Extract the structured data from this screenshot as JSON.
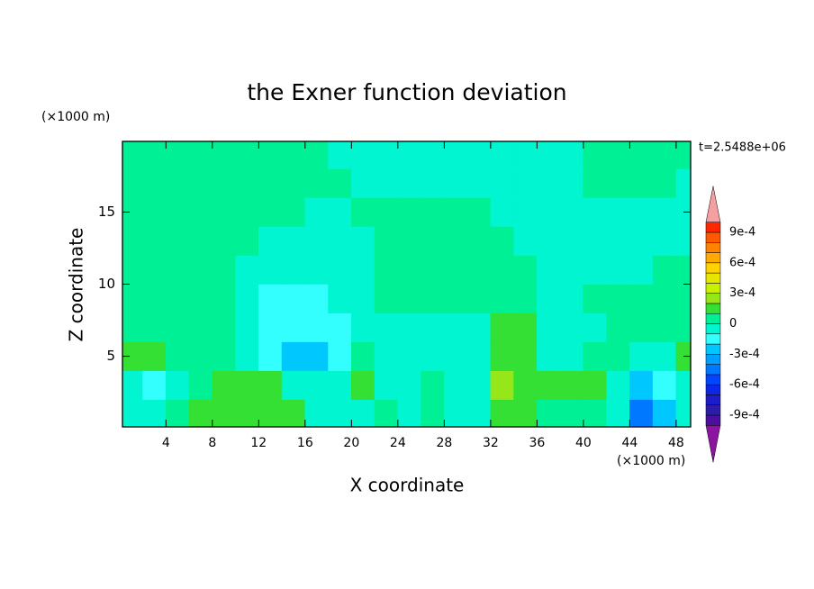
{
  "chart_data": {
    "type": "contour",
    "title": "the Exner function deviation",
    "xlabel": "X coordinate",
    "ylabel": "Z coordinate",
    "xunit": "(×1000 m)",
    "yunit": "(×1000 m)",
    "annotation": "t=2.5488e+06",
    "xlim": [
      0.25,
      49.25
    ],
    "ylim": [
      0.1,
      19.9
    ],
    "xticks": [
      4,
      8,
      12,
      16,
      20,
      24,
      28,
      32,
      36,
      40,
      44,
      48
    ],
    "yticks": [
      5,
      10,
      15
    ],
    "x": [
      1,
      3,
      5,
      7,
      9,
      11,
      13,
      15,
      17,
      19,
      21,
      23,
      25,
      27,
      29,
      31,
      33,
      35,
      37,
      39,
      41,
      43,
      45,
      47,
      49
    ],
    "y": [
      1,
      3,
      5,
      7,
      9,
      11,
      13,
      15,
      17,
      19
    ],
    "z": [
      [
        -5e-05,
        -5e-05,
        5e-05,
        0.00015,
        0.00015,
        0.00015,
        0.00015,
        0.00015,
        -5e-05,
        -5e-05,
        -5e-05,
        5e-05,
        -5e-05,
        5e-05,
        -5e-05,
        -5e-05,
        0.00015,
        0.00015,
        5e-05,
        5e-05,
        5e-05,
        -5e-05,
        -0.00045,
        -0.00025,
        -5e-05
      ],
      [
        -5e-05,
        -0.00015,
        -5e-05,
        5e-05,
        0.00015,
        0.00015,
        0.00015,
        -5e-05,
        -5e-05,
        -5e-05,
        0.00015,
        -5e-05,
        -5e-05,
        5e-05,
        -5e-05,
        -5e-05,
        0.00025,
        0.00015,
        0.00015,
        0.00015,
        0.00015,
        -5e-05,
        -0.00025,
        -0.00015,
        -5e-05
      ],
      [
        0.00015,
        0.00015,
        5e-05,
        5e-05,
        5e-05,
        -5e-05,
        -0.00015,
        -0.00025,
        -0.00025,
        -0.00015,
        5e-05,
        -5e-05,
        -5e-05,
        -5e-05,
        -5e-05,
        -5e-05,
        0.00015,
        0.00015,
        -5e-05,
        -5e-05,
        5e-05,
        5e-05,
        -5e-05,
        -5e-05,
        0.00015
      ],
      [
        5e-05,
        5e-05,
        5e-05,
        5e-05,
        5e-05,
        -5e-05,
        -0.00015,
        -0.00015,
        -0.00015,
        -0.00015,
        -5e-05,
        -5e-05,
        -5e-05,
        -5e-05,
        -5e-05,
        -5e-05,
        0.00015,
        0.00015,
        -5e-05,
        -5e-05,
        -5e-05,
        5e-05,
        5e-05,
        5e-05,
        5e-05
      ],
      [
        5e-05,
        5e-05,
        5e-05,
        5e-05,
        5e-05,
        -5e-05,
        -0.00015,
        -0.00015,
        -0.00015,
        -5e-05,
        -5e-05,
        5e-05,
        5e-05,
        5e-05,
        5e-05,
        5e-05,
        5e-05,
        5e-05,
        -5e-05,
        -5e-05,
        5e-05,
        5e-05,
        5e-05,
        5e-05,
        5e-05
      ],
      [
        5e-05,
        5e-05,
        5e-05,
        5e-05,
        5e-05,
        -5e-05,
        -5e-05,
        -5e-05,
        -5e-05,
        -5e-05,
        -5e-05,
        5e-05,
        5e-05,
        5e-05,
        5e-05,
        5e-05,
        5e-05,
        5e-05,
        -5e-05,
        -5e-05,
        -5e-05,
        -5e-05,
        -5e-05,
        5e-05,
        5e-05
      ],
      [
        5e-05,
        5e-05,
        5e-05,
        5e-05,
        5e-05,
        5e-05,
        -5e-05,
        -5e-05,
        -5e-05,
        -5e-05,
        -5e-05,
        5e-05,
        5e-05,
        5e-05,
        5e-05,
        5e-05,
        5e-05,
        -5e-05,
        -5e-05,
        -5e-05,
        -5e-05,
        -5e-05,
        -5e-05,
        -5e-05,
        -5e-05
      ],
      [
        5e-05,
        5e-05,
        5e-05,
        5e-05,
        5e-05,
        5e-05,
        5e-05,
        5e-05,
        -5e-05,
        -5e-05,
        5e-05,
        5e-05,
        5e-05,
        5e-05,
        5e-05,
        5e-05,
        -5e-05,
        -5e-05,
        -5e-05,
        -5e-05,
        -5e-05,
        -5e-05,
        -5e-05,
        -5e-05,
        -5e-05
      ],
      [
        5e-05,
        5e-05,
        5e-05,
        5e-05,
        5e-05,
        5e-05,
        5e-05,
        5e-05,
        5e-05,
        5e-05,
        -5e-05,
        -5e-05,
        -5e-05,
        -5e-05,
        -5e-05,
        -5e-05,
        -5e-05,
        -5e-05,
        -5e-05,
        -5e-05,
        5e-05,
        5e-05,
        5e-05,
        5e-05,
        -5e-05
      ],
      [
        5e-05,
        5e-05,
        5e-05,
        5e-05,
        5e-05,
        5e-05,
        5e-05,
        5e-05,
        5e-05,
        -5e-05,
        -5e-05,
        -5e-05,
        -5e-05,
        -5e-05,
        -5e-05,
        -5e-05,
        -5e-05,
        -5e-05,
        -5e-05,
        -5e-05,
        5e-05,
        5e-05,
        5e-05,
        5e-05,
        5e-05
      ]
    ],
    "levels": [
      -0.001,
      -0.0009,
      -0.0008,
      -0.0007,
      -0.0006,
      -0.0005,
      -0.0004,
      -0.0003,
      -0.0002,
      -0.0001,
      0,
      0.0001,
      0.0002,
      0.0003,
      0.0004,
      0.0005,
      0.0006,
      0.0007,
      0.0008,
      0.0009,
      0.001
    ],
    "colors": [
      "#8c14a0",
      "#4b0f9e",
      "#2d1ca8",
      "#1c1cc8",
      "#0a28e6",
      "#0046ff",
      "#0078ff",
      "#00a0ff",
      "#00c8ff",
      "#33ffff",
      "#00f5d0",
      "#00f096",
      "#33e033",
      "#96e61a",
      "#c8f000",
      "#e6e600",
      "#ffd200",
      "#ffaa00",
      "#ff8200",
      "#ff5a00",
      "#ff2800",
      "#e61e1e",
      "#f5a0a0"
    ],
    "colorbar_ticks": [
      {
        "value": -0.0009,
        "label": "-9e-4"
      },
      {
        "value": -0.0006,
        "label": "-6e-4"
      },
      {
        "value": -0.0003,
        "label": "-3e-4"
      },
      0,
      {
        "value": 0.0003,
        "label": "3e-4"
      },
      {
        "value": 0.0006,
        "label": "6e-4"
      },
      {
        "value": 0.0009,
        "label": "9e-4"
      }
    ]
  }
}
